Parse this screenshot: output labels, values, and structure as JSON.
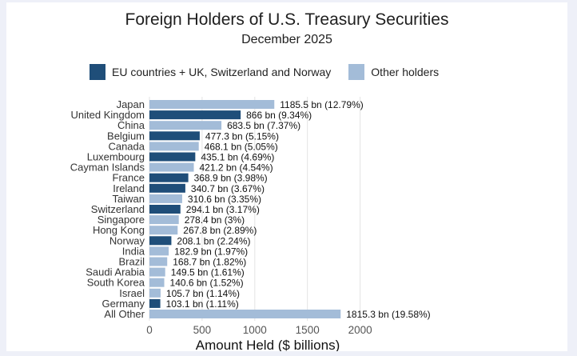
{
  "chart_data": {
    "type": "bar",
    "orientation": "horizontal",
    "title": "Foreign Holders of U.S. Treasury Securities",
    "subtitle": "December 2025",
    "xlabel": "Amount Held ($ billions)",
    "ylabel": "",
    "xlim": [
      0,
      2000
    ],
    "xticks": [
      0,
      500,
      1000,
      1500,
      2000
    ],
    "grid": true,
    "legend": [
      {
        "name": "EU countries + UK, Switzerland and Norway",
        "color": "#1f4e79"
      },
      {
        "name": "Other holders",
        "color": "#a3bcd8"
      }
    ],
    "categories": [
      "Japan",
      "United Kingdom",
      "China",
      "Belgium",
      "Canada",
      "Luxembourg",
      "Cayman Islands",
      "France",
      "Ireland",
      "Taiwan",
      "Switzerland",
      "Singapore",
      "Hong Kong",
      "Norway",
      "India",
      "Brazil",
      "Saudi Arabia",
      "South Korea",
      "Israel",
      "Germany",
      "All Other"
    ],
    "values": [
      1185.5,
      866,
      683.5,
      477.3,
      468.1,
      435.1,
      421.2,
      368.9,
      340.7,
      310.6,
      294.1,
      278.4,
      267.8,
      208.1,
      182.9,
      168.7,
      149.5,
      140.6,
      105.7,
      103.1,
      1815.3
    ],
    "groups": [
      1,
      0,
      1,
      0,
      1,
      0,
      1,
      0,
      0,
      1,
      0,
      1,
      1,
      0,
      1,
      1,
      1,
      1,
      1,
      0,
      1
    ],
    "labels": [
      "1185.5 bn (12.79%)",
      "866 bn (9.34%)",
      "683.5 bn (7.37%)",
      "477.3 bn (5.15%)",
      "468.1 bn (5.05%)",
      "435.1 bn (4.69%)",
      "421.2 bn (4.54%)",
      "368.9 bn (3.98%)",
      "340.7 bn (3.67%)",
      "310.6 bn (3.35%)",
      "294.1 bn (3.17%)",
      "278.4 bn (3%)",
      "267.8 bn (2.89%)",
      "208.1 bn (2.24%)",
      "182.9 bn (1.97%)",
      "168.7 bn (1.82%)",
      "149.5 bn (1.61%)",
      "140.6 bn (1.52%)",
      "105.7 bn (1.14%)",
      "103.1 bn (1.11%)",
      "1815.3 bn (19.58%)"
    ]
  }
}
